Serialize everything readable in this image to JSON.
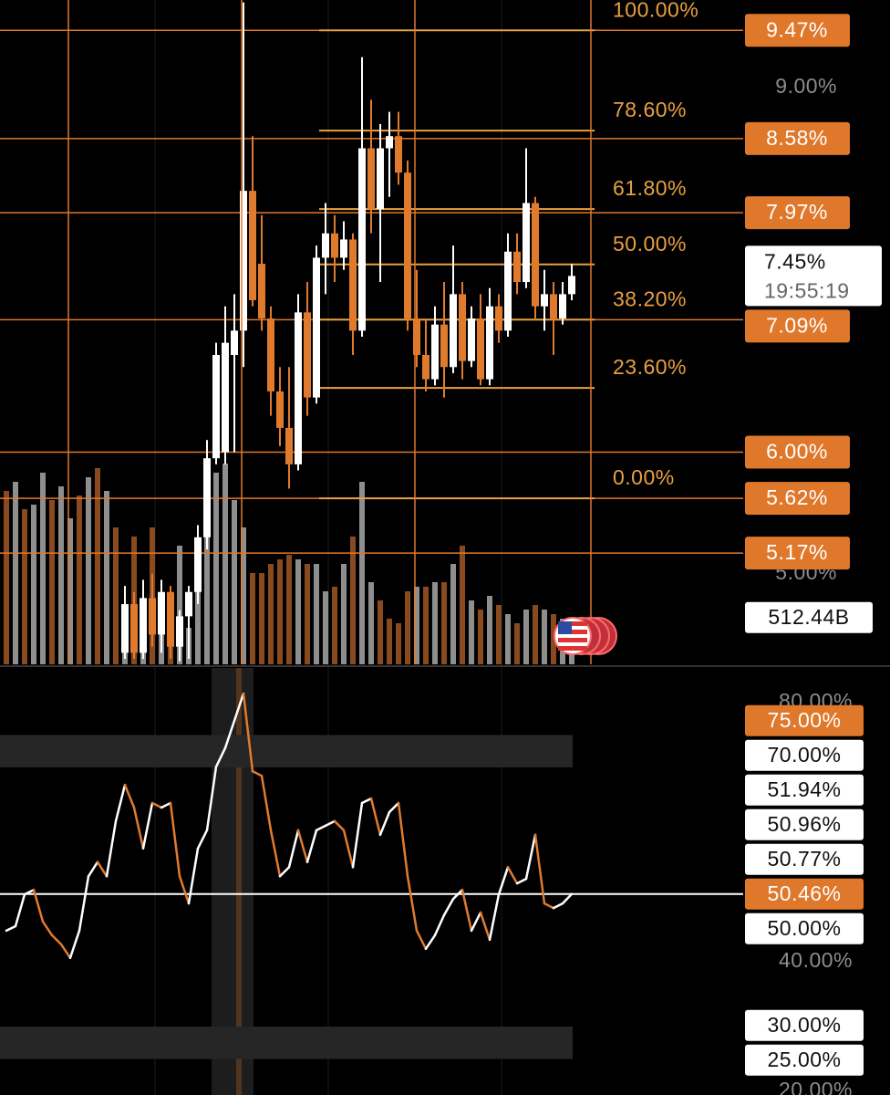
{
  "chart_data": [
    {
      "type": "candlestick",
      "ylim": [
        4.255,
        9.72
      ],
      "yticks": [
        {
          "value": 9,
          "label": "9.00%"
        },
        {
          "value": 5,
          "label": "5.00%"
        }
      ],
      "up_color": "#ffffff",
      "down_color": "#e07b2e",
      "candles": {
        "open": [
          4.35,
          4.75,
          4.35,
          4.8,
          4.5,
          4.85,
          4.4,
          4.65,
          4.85,
          5.3,
          5.95,
          6.0,
          6.8,
          7.0,
          8.15,
          7.55,
          7.1,
          6.5,
          6.2,
          5.9,
          7.15,
          6.45,
          7.6,
          7.8,
          7.6,
          7.75,
          7.0,
          8.5,
          8.0,
          8.5,
          8.6,
          8.3,
          7.1,
          6.8,
          6.6,
          7.05,
          6.7,
          7.3,
          6.75,
          7.1,
          6.6,
          7.2,
          7.0,
          7.65,
          7.4,
          8.05,
          7.2,
          7.3,
          7.1,
          7.3
        ],
        "high": [
          4.9,
          4.85,
          4.95,
          5.0,
          4.95,
          4.9,
          4.7,
          4.9,
          5.4,
          6.1,
          6.9,
          7.2,
          7.3,
          9.7,
          8.6,
          7.95,
          7.2,
          6.7,
          6.7,
          7.3,
          7.4,
          7.7,
          8.05,
          7.95,
          7.9,
          7.8,
          9.25,
          8.9,
          8.7,
          8.8,
          8.8,
          8.4,
          7.5,
          7.1,
          7.2,
          7.4,
          7.7,
          7.4,
          7.2,
          7.3,
          7.35,
          7.3,
          7.8,
          7.8,
          8.5,
          8.1,
          7.5,
          7.4,
          7.4,
          7.55
        ],
        "low": [
          4.3,
          4.3,
          4.3,
          4.4,
          4.35,
          4.3,
          4.28,
          4.3,
          4.75,
          5.2,
          5.9,
          5.9,
          6.0,
          6.7,
          7.2,
          7.0,
          6.3,
          6.05,
          5.7,
          5.85,
          6.3,
          6.4,
          7.3,
          7.4,
          7.5,
          6.8,
          6.95,
          7.8,
          7.4,
          8.1,
          8.2,
          7.0,
          6.7,
          6.5,
          6.55,
          6.45,
          6.65,
          6.6,
          6.7,
          6.55,
          6.55,
          6.9,
          6.95,
          7.3,
          7.35,
          7.1,
          7.0,
          6.8,
          7.05,
          7.25
        ],
        "close": [
          4.75,
          4.35,
          4.8,
          4.5,
          4.85,
          4.4,
          4.65,
          4.85,
          5.3,
          5.95,
          6.8,
          6.9,
          7.0,
          8.15,
          7.25,
          7.1,
          6.5,
          6.2,
          5.9,
          7.15,
          6.45,
          7.6,
          7.8,
          7.6,
          7.75,
          7.0,
          8.5,
          8.0,
          8.5,
          8.6,
          8.3,
          7.1,
          6.8,
          6.6,
          7.05,
          6.7,
          7.3,
          6.75,
          7.1,
          6.6,
          7.2,
          7.0,
          7.65,
          7.4,
          8.05,
          7.2,
          7.3,
          7.1,
          7.3,
          7.45
        ]
      },
      "volume": [
        1900,
        2000,
        1700,
        1750,
        2100,
        1800,
        1950,
        1600,
        1850,
        2050,
        2150,
        1900,
        1500,
        500,
        1400,
        600,
        1500,
        700,
        300,
        1300,
        400,
        1300,
        1500,
        2100,
        2200,
        1800,
        1500,
        1000,
        1000,
        1100,
        1150,
        1200,
        1150,
        1100,
        1100,
        800,
        850,
        1100,
        1400,
        2000,
        900,
        700,
        500,
        450,
        800,
        850,
        850,
        900,
        900,
        1100,
        1300,
        700,
        600,
        750,
        650,
        550,
        450,
        600,
        650,
        600,
        550,
        500,
        512.44
      ],
      "volume_up": [
        false,
        true,
        false,
        true,
        true,
        false,
        true,
        true,
        false,
        true,
        false,
        true,
        false,
        true,
        false,
        true,
        false,
        true,
        false,
        true,
        true,
        true,
        true,
        true,
        true,
        true,
        true,
        false,
        false,
        false,
        false,
        false,
        true,
        false,
        true,
        true,
        false,
        true,
        false,
        true,
        true,
        false,
        false,
        false,
        false,
        true,
        false,
        true,
        false,
        true,
        false,
        true,
        false,
        true,
        false,
        true,
        false,
        true,
        false,
        true,
        false,
        true,
        true
      ],
      "vlim": [
        0,
        2400
      ],
      "volume_up_color": "#8e8e8e",
      "volume_down_color": "#8a4a1f",
      "volume_last": {
        "value": 512.44,
        "label": "512.44B"
      },
      "price_lines": [
        {
          "value": 9.47,
          "label": "9.47%"
        },
        {
          "value": 8.58,
          "label": "8.58%"
        },
        {
          "value": 7.97,
          "label": "7.97%"
        },
        {
          "value": 7.09,
          "label": "7.09%"
        },
        {
          "value": 6.0,
          "label": "6.00%"
        },
        {
          "value": 5.62,
          "label": "5.62%"
        },
        {
          "value": 5.17,
          "label": "5.17%"
        }
      ],
      "price_line_color": "#e0782b",
      "last_price": {
        "value": 7.45,
        "label": "7.45%",
        "time": "19:55:19"
      },
      "fib_levels": [
        {
          "label": "100.00%",
          "price": 9.47
        },
        {
          "label": "78.60%",
          "price": 8.646
        },
        {
          "label": "61.80%",
          "price": 8.0
        },
        {
          "label": "50.00%",
          "price": 7.545
        },
        {
          "label": "38.20%",
          "price": 7.091
        },
        {
          "label": "23.60%",
          "price": 6.529
        },
        {
          "label": "0.00%",
          "price": 5.62
        }
      ],
      "fib_color": "#e8a040"
    },
    {
      "type": "line",
      "ylim": [
        19.44,
        85.35
      ],
      "yticks": [
        {
          "value": 80,
          "label": "80.00%"
        },
        {
          "value": 40,
          "label": "40.00%"
        },
        {
          "value": 20,
          "label": "20.00%"
        }
      ],
      "values": [
        44.8,
        45.5,
        50.4,
        51.1,
        46.2,
        44.1,
        42.7,
        40.6,
        44.8,
        53.2,
        55.4,
        53.2,
        61.7,
        67.3,
        63.8,
        57.5,
        64.5,
        63.8,
        64.5,
        53.2,
        49.0,
        57.5,
        60.3,
        70.1,
        73.0,
        77.2,
        81.4,
        69.4,
        68.7,
        60.3,
        53.2,
        54.6,
        60.3,
        55.4,
        60.3,
        61.0,
        61.7,
        60.3,
        54.6,
        64.5,
        65.2,
        59.6,
        63.1,
        64.5,
        53.2,
        44.8,
        42.0,
        44.1,
        47.2,
        49.7,
        51.1,
        44.8,
        47.6,
        43.4,
        50.4,
        54.6,
        52.1,
        52.8,
        59.6,
        49.0,
        48.3,
        49.0,
        50.46
      ],
      "last_value_label": "50.46%",
      "up_color": "#ffffff",
      "down_color": "#e07b2e",
      "bands": [
        [
          70,
          75
        ],
        [
          25,
          30
        ]
      ],
      "levels": [
        {
          "value": 75,
          "label": "75.00%",
          "color": "#e0782b"
        },
        {
          "value": 70,
          "label": "70.00%",
          "color": "#ffffff"
        },
        {
          "value": 51.94,
          "label": "51.94%",
          "color": "#ffffff"
        },
        {
          "value": 50.96,
          "label": "50.96%",
          "color": "#ffffff"
        },
        {
          "value": 50.77,
          "label": "50.77%",
          "color": "#ffffff"
        },
        {
          "value": 50.0,
          "label": "50.00%",
          "color": "#ffffff"
        },
        {
          "value": 30,
          "label": "30.00%",
          "color": "#ffffff"
        },
        {
          "value": 25,
          "label": "25.00%",
          "color": "#ffffff"
        }
      ],
      "last_color": "#e0782b"
    }
  ]
}
